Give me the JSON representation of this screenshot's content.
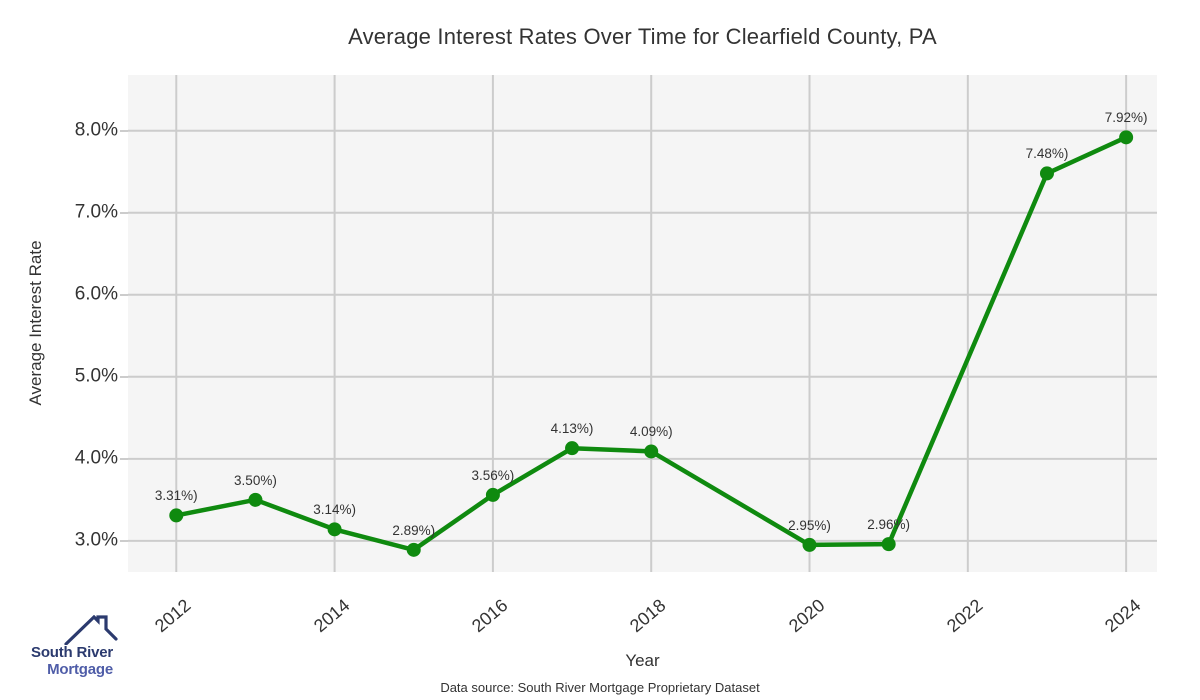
{
  "chart_data": {
    "type": "line",
    "title": "Average Interest Rates Over Time for Clearfield County, PA",
    "xlabel": "Year",
    "ylabel": "Average Interest Rate",
    "x": [
      2012,
      2013,
      2014,
      2015,
      2016,
      2017,
      2018,
      2020,
      2021,
      2023,
      2024
    ],
    "values": [
      3.31,
      3.5,
      3.14,
      2.89,
      3.56,
      4.13,
      4.09,
      2.95,
      2.96,
      7.48,
      7.92
    ],
    "point_labels": [
      "3.31%)",
      "3.50%)",
      "3.14%)",
      "2.89%)",
      "3.56%)",
      "4.13%)",
      "4.09%)",
      "2.95%)",
      "2.96%)",
      "7.48%)",
      "7.92%)"
    ],
    "x_tick_labels": [
      "2012",
      "2014",
      "2016",
      "2018",
      "2020",
      "2022",
      "2024"
    ],
    "x_tick_values": [
      2012,
      2014,
      2016,
      2018,
      2020,
      2022,
      2024
    ],
    "y_tick_labels": [
      "3.0%",
      "4.0%",
      "5.0%",
      "6.0%",
      "7.0%",
      "8.0%"
    ],
    "y_tick_values": [
      3,
      4,
      5,
      6,
      7,
      8
    ],
    "xlim": [
      2011.39,
      2024.39
    ],
    "ylim": [
      2.62,
      8.68
    ],
    "grid": true,
    "legend": "none",
    "line_color": "#0f8a0f",
    "marker_color": "#0f8a0f",
    "panel_bg": "#f5f5f5",
    "grid_color": "#cccccc",
    "text_color": "#333333"
  },
  "logo": {
    "line1": "South River",
    "line2": "Mortgage",
    "navy": "#2b3a6e",
    "blue": "#4f5da8"
  },
  "footer": {
    "source": "Data source: South River Mortgage Proprietary Dataset"
  }
}
